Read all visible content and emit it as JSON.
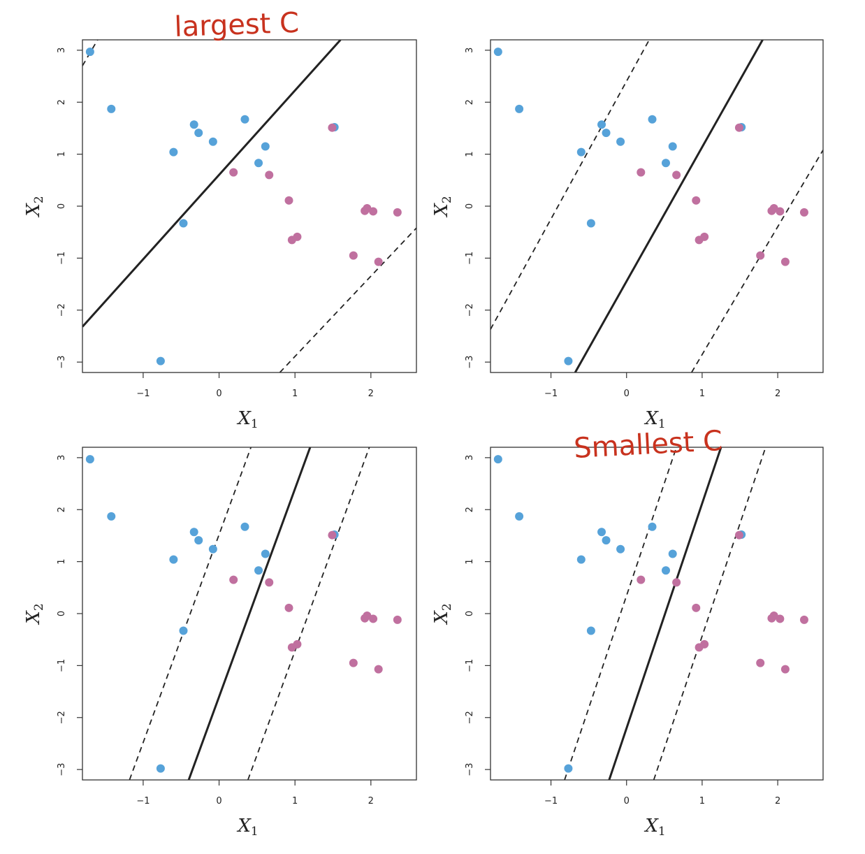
{
  "chart_data": [
    {
      "type": "scatter",
      "annotation": "largest C",
      "xlabel": "X",
      "xlabel_sub": "1",
      "ylabel": "X",
      "ylabel_sub": "2",
      "xlim": [
        -1.8,
        2.6
      ],
      "ylim": [
        -3.2,
        3.2
      ],
      "xticks": [
        -1,
        0,
        1,
        2
      ],
      "yticks": [
        -3,
        -2,
        -1,
        0,
        1,
        2,
        3
      ],
      "lines": [
        {
          "style": "solid",
          "p1": [
            -1.8,
            -2.32
          ],
          "p2": [
            1.6,
            3.2
          ]
        },
        {
          "style": "dashed",
          "p1": [
            -1.8,
            2.7
          ],
          "p2": [
            -1.6,
            3.2
          ]
        },
        {
          "style": "dashed",
          "p1": [
            0.8,
            -3.2
          ],
          "p2": [
            2.6,
            -0.42
          ]
        }
      ]
    },
    {
      "type": "scatter",
      "annotation": "",
      "xlabel": "X",
      "xlabel_sub": "1",
      "ylabel": "X",
      "ylabel_sub": "2",
      "xlim": [
        -1.8,
        2.6
      ],
      "ylim": [
        -3.2,
        3.2
      ],
      "xticks": [
        -1,
        0,
        1,
        2
      ],
      "yticks": [
        -3,
        -2,
        -1,
        0,
        1,
        2,
        3
      ],
      "lines": [
        {
          "style": "solid",
          "p1": [
            -0.68,
            -3.2
          ],
          "p2": [
            1.8,
            3.2
          ]
        },
        {
          "style": "dashed",
          "p1": [
            -1.8,
            -2.37
          ],
          "p2": [
            0.3,
            3.2
          ]
        },
        {
          "style": "dashed",
          "p1": [
            0.86,
            -3.2
          ],
          "p2": [
            2.6,
            1.08
          ]
        }
      ]
    },
    {
      "type": "scatter",
      "annotation": "",
      "xlabel": "X",
      "xlabel_sub": "1",
      "ylabel": "X",
      "ylabel_sub": "2",
      "xlim": [
        -1.8,
        2.6
      ],
      "ylim": [
        -3.2,
        3.2
      ],
      "xticks": [
        -1,
        0,
        1,
        2
      ],
      "yticks": [
        -3,
        -2,
        -1,
        0,
        1,
        2,
        3
      ],
      "lines": [
        {
          "style": "solid",
          "p1": [
            -0.4,
            -3.2
          ],
          "p2": [
            1.2,
            3.2
          ]
        },
        {
          "style": "dashed",
          "p1": [
            -1.18,
            -3.2
          ],
          "p2": [
            0.42,
            3.2
          ]
        },
        {
          "style": "dashed",
          "p1": [
            0.38,
            -3.2
          ],
          "p2": [
            1.98,
            3.2
          ]
        }
      ]
    },
    {
      "type": "scatter",
      "annotation": "Smallest C",
      "xlabel": "X",
      "xlabel_sub": "1",
      "ylabel": "X",
      "ylabel_sub": "2",
      "xlim": [
        -1.8,
        2.6
      ],
      "ylim": [
        -3.2,
        3.2
      ],
      "xticks": [
        -1,
        0,
        1,
        2
      ],
      "yticks": [
        -3,
        -2,
        -1,
        0,
        1,
        2,
        3
      ],
      "lines": [
        {
          "style": "solid",
          "p1": [
            -0.23,
            -3.2
          ],
          "p2": [
            1.25,
            3.2
          ]
        },
        {
          "style": "dashed",
          "p1": [
            -0.82,
            -3.2
          ],
          "p2": [
            0.66,
            3.2
          ]
        },
        {
          "style": "dashed",
          "p1": [
            0.36,
            -3.2
          ],
          "p2": [
            1.84,
            3.2
          ]
        }
      ]
    }
  ],
  "points": {
    "blue": [
      [
        -1.7,
        2.97
      ],
      [
        -1.42,
        1.87
      ],
      [
        -0.6,
        1.04
      ],
      [
        -0.33,
        1.57
      ],
      [
        -0.27,
        1.41
      ],
      [
        -0.08,
        1.24
      ],
      [
        0.34,
        1.67
      ],
      [
        0.52,
        0.83
      ],
      [
        0.61,
        1.15
      ],
      [
        1.52,
        1.52
      ],
      [
        -0.47,
        -0.33
      ],
      [
        -0.77,
        -2.98
      ]
    ],
    "pink": [
      [
        0.19,
        0.65
      ],
      [
        0.66,
        0.6
      ],
      [
        1.49,
        1.51
      ],
      [
        0.92,
        0.11
      ],
      [
        0.96,
        -0.65
      ],
      [
        1.03,
        -0.59
      ],
      [
        1.77,
        -0.95
      ],
      [
        1.92,
        -0.09
      ],
      [
        1.95,
        -0.04
      ],
      [
        2.03,
        -0.1
      ],
      [
        2.1,
        -1.07
      ],
      [
        2.35,
        -0.12
      ]
    ]
  },
  "colors": {
    "blue": "#56a2d9",
    "pink": "#c0709f",
    "annotation": "#c8321e",
    "line": "#222222"
  }
}
